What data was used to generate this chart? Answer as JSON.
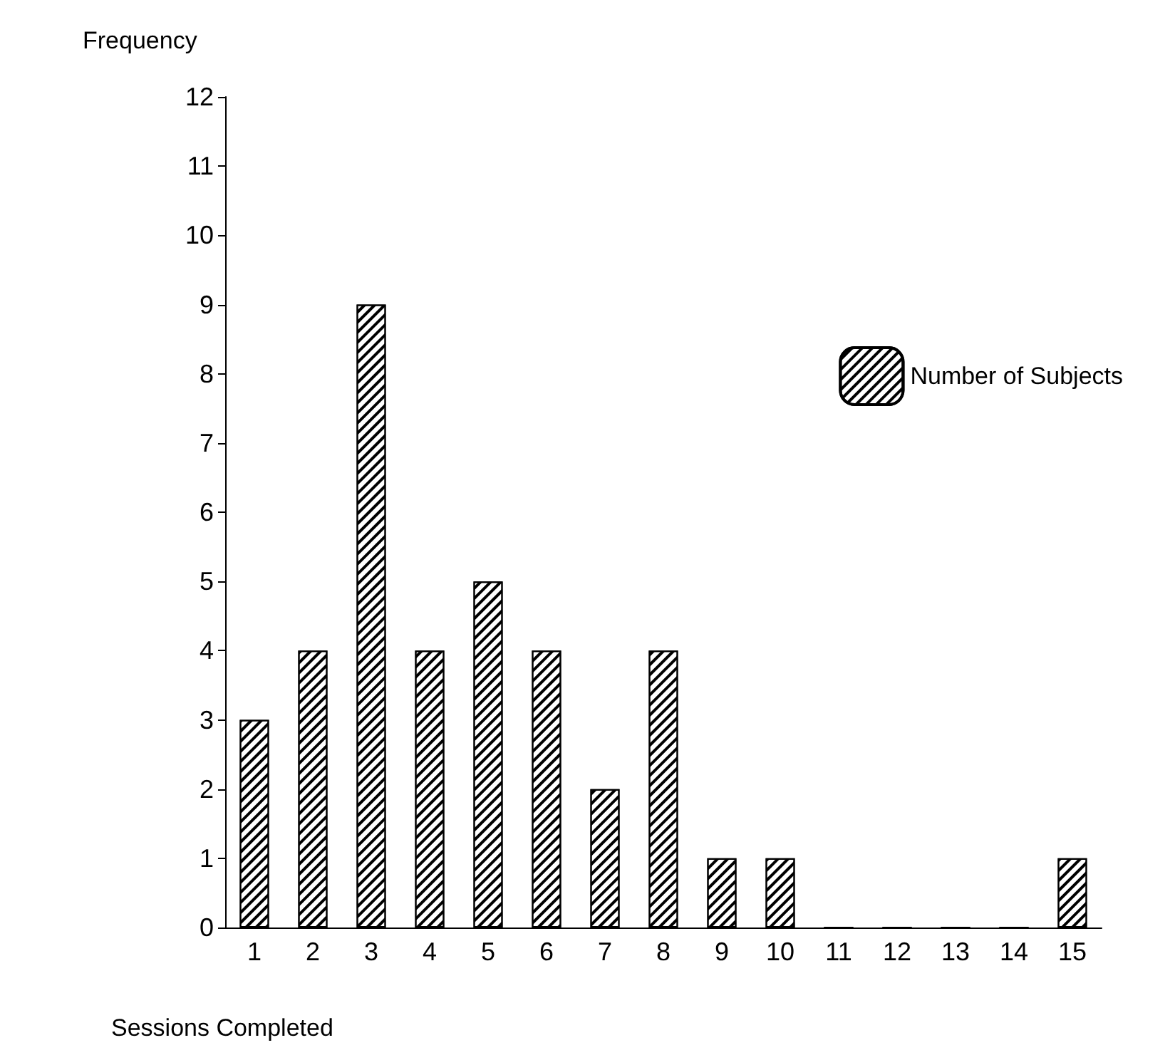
{
  "chart_data": {
    "type": "bar",
    "xlabel": "Sessions Completed",
    "ylabel": "Frequency",
    "categories": [
      "1",
      "2",
      "3",
      "4",
      "5",
      "6",
      "7",
      "8",
      "9",
      "10",
      "11",
      "12",
      "13",
      "14",
      "15"
    ],
    "series": [
      {
        "name": "Number of Subjects",
        "color": "#ffffff",
        "values": [
          3,
          4,
          9,
          4,
          5,
          4,
          2,
          4,
          1,
          1,
          0,
          0,
          0,
          0,
          1
        ]
      }
    ],
    "ylim": [
      0,
      12
    ],
    "yticks": [
      0,
      1,
      2,
      3,
      4,
      5,
      6,
      7,
      8,
      9,
      10,
      11,
      12
    ],
    "grid": false,
    "legend": "right"
  }
}
